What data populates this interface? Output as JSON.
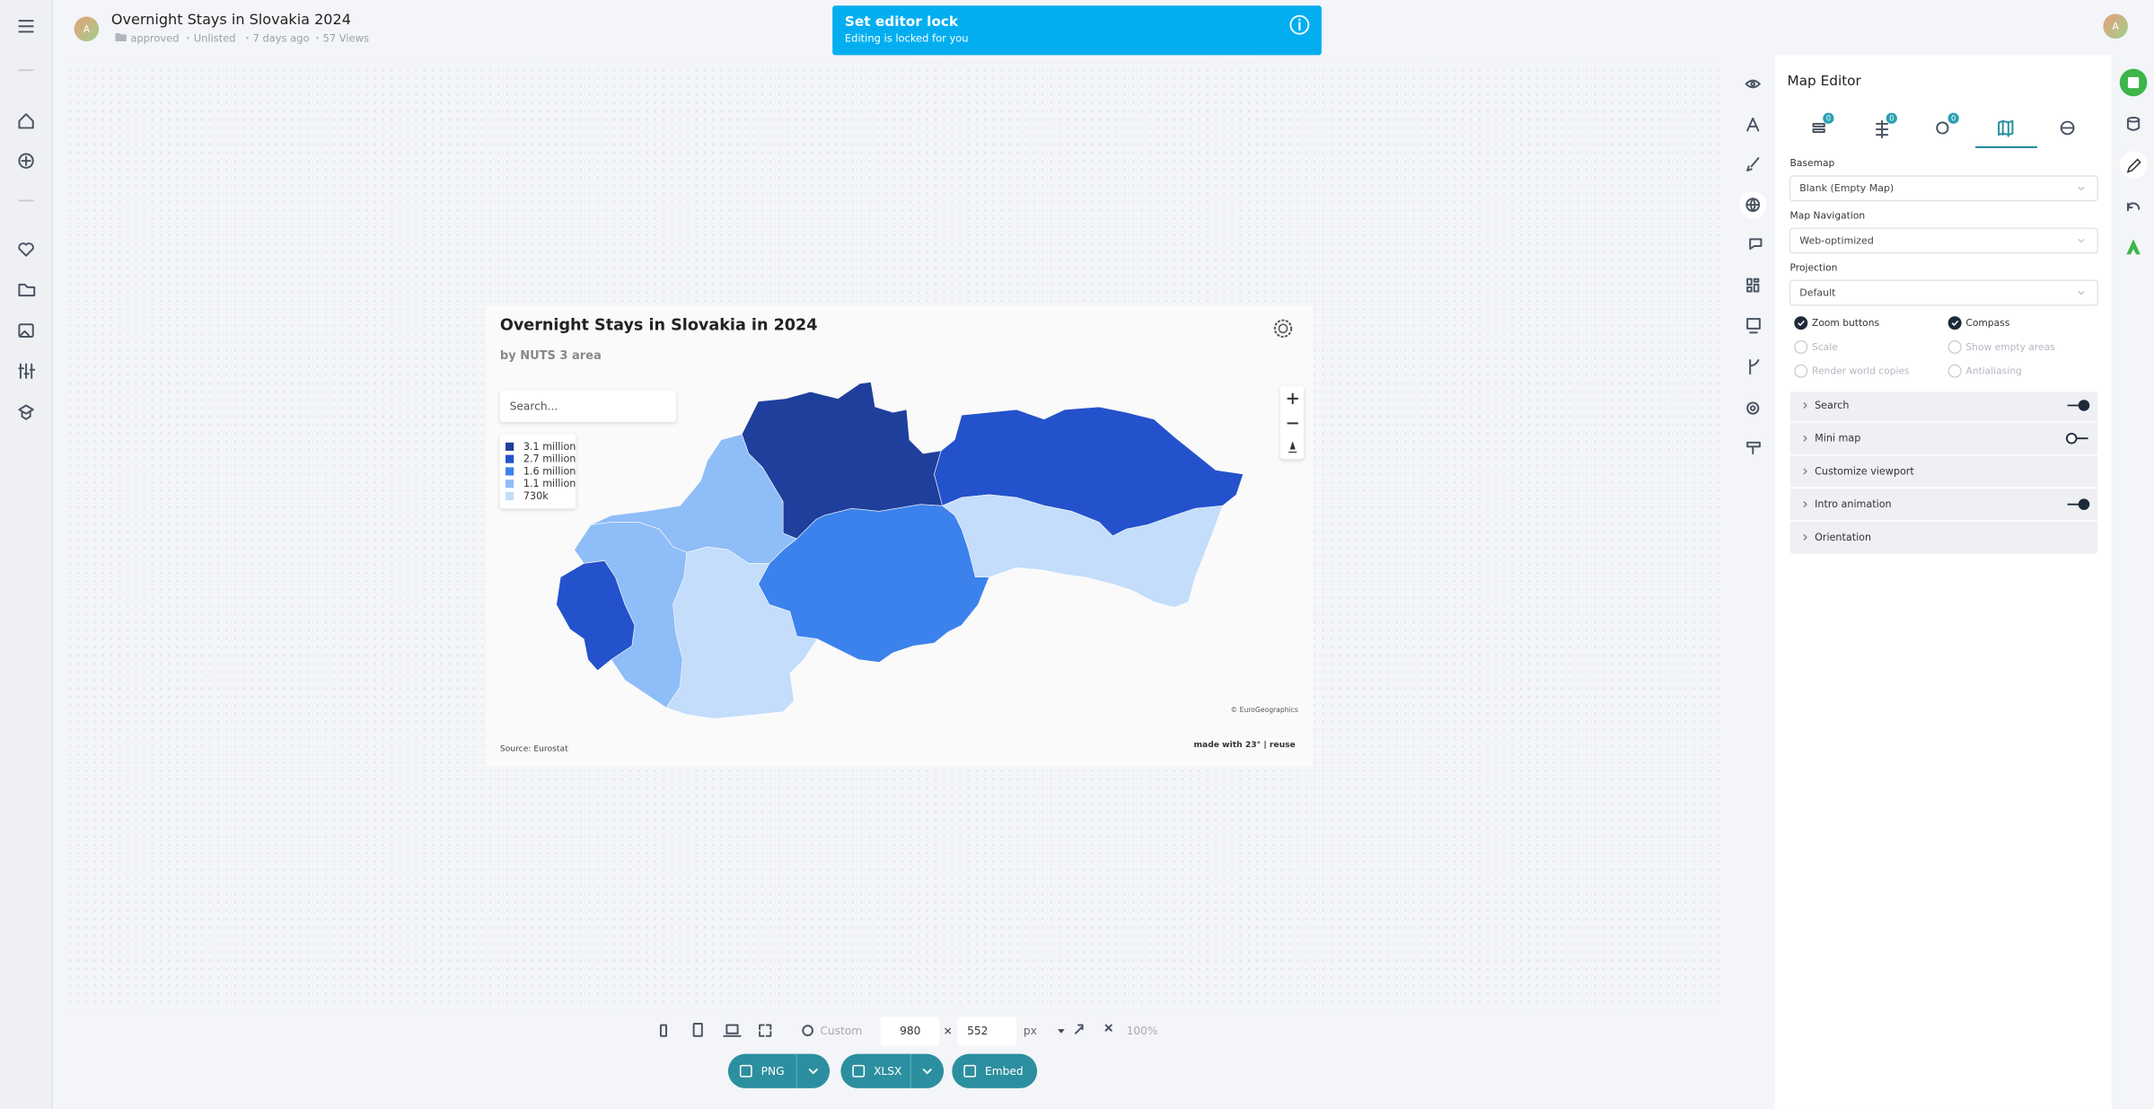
{
  "header": {
    "avatar": "A",
    "title": "Overnight Stays in Slovakia 2024",
    "meta": [
      "approved",
      "Unlisted",
      "7 days ago",
      "57 Views"
    ],
    "user_avatar": "A"
  },
  "banner": {
    "title": "Set editor lock",
    "text": "Editing is locked for you"
  },
  "chart": {
    "title": "Overnight Stays in Slovakia in 2024",
    "subtitle": "by NUTS 3 area",
    "search_placeholder": "Search...",
    "legend": [
      {
        "label": "3.1 million",
        "color": "#1f3f9c"
      },
      {
        "label": "2.7 million",
        "color": "#2452cc"
      },
      {
        "label": "1.6 million",
        "color": "#3c82ec"
      },
      {
        "label": "1.1 million",
        "color": "#8fbdf8"
      },
      {
        "label": "730k",
        "color": "#c3ddfb"
      }
    ],
    "attribution": "© EuroGeographics",
    "source": "Source: Eurostat",
    "credit": "made with 23° | reuse"
  },
  "editor": {
    "title": "Map Editor",
    "badges": [
      "0",
      "0",
      "0"
    ],
    "fields": [
      {
        "label": "Basemap",
        "value": "Blank (Empty Map)"
      },
      {
        "label": "Map Navigation",
        "value": "Web-optimized"
      },
      {
        "label": "Projection",
        "value": "Default"
      }
    ],
    "options": [
      {
        "label": "Zoom buttons",
        "checked": true
      },
      {
        "label": "Compass",
        "checked": true
      },
      {
        "label": "Scale",
        "checked": false
      },
      {
        "label": "Show empty areas",
        "checked": false
      },
      {
        "label": "Render world copies",
        "checked": false
      },
      {
        "label": "Antialiasing",
        "checked": false
      }
    ],
    "sections": [
      {
        "label": "Search",
        "toggle": true
      },
      {
        "label": "Mini map",
        "toggle": false
      },
      {
        "label": "Customize viewport"
      },
      {
        "label": "Intro animation",
        "toggle": true
      },
      {
        "label": "Orientation"
      }
    ]
  },
  "footer": {
    "preset": "Custom",
    "width": 980,
    "times": "×",
    "height": 552,
    "unit": "px",
    "zoom": "100%",
    "exports": [
      "PNG",
      "XLSX",
      "Embed"
    ]
  }
}
